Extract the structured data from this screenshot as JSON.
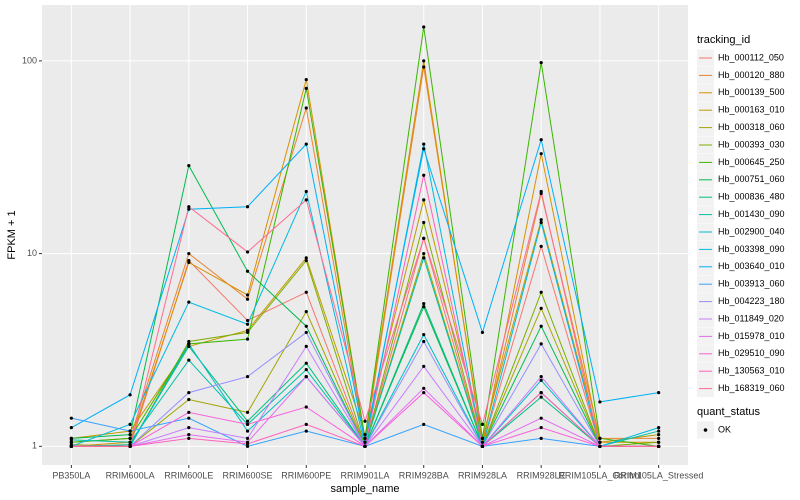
{
  "chart_data": {
    "type": "line",
    "x_label": "sample_name",
    "y_label": "FPKM + 1",
    "categories": [
      "PB350LA",
      "RRIM600LA",
      "RRIM600LE",
      "RRIM600SE",
      "RRIM600PE",
      "RRIM901LA",
      "RRIM928BA",
      "RRIM928LA",
      "RRIM928LE",
      "RRIM105LA_Control",
      "RRIM105LA_Stressed"
    ],
    "log_y": true,
    "ylim": [
      0.8,
      195
    ],
    "yticks": [
      1,
      10,
      100
    ],
    "grid": true,
    "legend_title": "tracking_id",
    "point_legend": {
      "title": "quant_status",
      "label": "OK",
      "color": "#000000"
    },
    "series": [
      {
        "name": "Hb_000112_050",
        "color": "#F8766D",
        "values": [
          1.0,
          1.0,
          9.2,
          4.5,
          6.3,
          1.0,
          12,
          1.0,
          10.9,
          1.0,
          1.0
        ]
      },
      {
        "name": "Hb_000120_880",
        "color": "#EA8331",
        "values": [
          1.05,
          1.1,
          10,
          5.8,
          57,
          1.05,
          93,
          1.05,
          20.5,
          1.1,
          1.1
        ]
      },
      {
        "name": "Hb_000139_500",
        "color": "#D89000",
        "values": [
          1.0,
          1.05,
          9,
          6.1,
          80,
          1.1,
          100,
          1.0,
          33,
          1.05,
          1.05
        ]
      },
      {
        "name": "Hb_000163_010",
        "color": "#C09B00",
        "values": [
          1.1,
          1.2,
          3.3,
          4,
          9.5,
          1.15,
          19,
          1.1,
          15,
          1.05,
          1.15
        ]
      },
      {
        "name": "Hb_000318_060",
        "color": "#A3A500",
        "values": [
          1.02,
          1.0,
          1.75,
          1.5,
          5,
          1.0,
          10,
          1.0,
          5.2,
          1.0,
          1.0
        ]
      },
      {
        "name": "Hb_000393_030",
        "color": "#7CAE00",
        "values": [
          1.0,
          1.0,
          3.5,
          3.9,
          9.2,
          1.0,
          14.5,
          1.0,
          6.3,
          1.0,
          1.05
        ]
      },
      {
        "name": "Hb_000645_250",
        "color": "#39B600",
        "values": [
          1.05,
          1.1,
          3.4,
          3.6,
          72,
          1.1,
          150,
          1.1,
          98,
          1.1,
          1.0
        ]
      },
      {
        "name": "Hb_000751_060",
        "color": "#00BB4E",
        "values": [
          1.1,
          1.15,
          28.6,
          8.1,
          4.2,
          1.0,
          5.3,
          1.0,
          4.2,
          1.0,
          1.0
        ]
      },
      {
        "name": "Hb_000836_480",
        "color": "#00BF7D",
        "values": [
          1.0,
          1.02,
          3.3,
          1.35,
          2.7,
          1.0,
          5.5,
          1.0,
          1.8,
          1.0,
          1.0
        ]
      },
      {
        "name": "Hb_001430_090",
        "color": "#00C1A3",
        "values": [
          1.08,
          1.05,
          2.8,
          1.3,
          2.5,
          1.0,
          9.5,
          1.0,
          1.9,
          1.0,
          1.2
        ]
      },
      {
        "name": "Hb_002900_040",
        "color": "#00BFC4",
        "values": [
          1.0,
          1.0,
          3.4,
          1.2,
          2.3,
          1.0,
          3.8,
          1.0,
          2.2,
          1.0,
          1.0
        ]
      },
      {
        "name": "Hb_003398_090",
        "color": "#00BAE0",
        "values": [
          1.0,
          1.3,
          5.6,
          4.3,
          21,
          1.0,
          37,
          1.0,
          14.5,
          1.0,
          1.25
        ]
      },
      {
        "name": "Hb_003640_010",
        "color": "#00B0F6",
        "values": [
          1.25,
          1.85,
          17,
          17.5,
          37,
          1.05,
          35,
          3.9,
          39,
          1.7,
          1.9
        ]
      },
      {
        "name": "Hb_003913_060",
        "color": "#35A2FF",
        "values": [
          1.4,
          1.2,
          1.4,
          1.0,
          1.2,
          1.0,
          1.3,
          1.0,
          1.1,
          1.0,
          1.0
        ]
      },
      {
        "name": "Hb_004223_180",
        "color": "#9590FF",
        "values": [
          1.0,
          1.0,
          1.9,
          2.3,
          3.9,
          1.0,
          3.5,
          1.0,
          3.4,
          1.0,
          1.0
        ]
      },
      {
        "name": "Hb_011849_020",
        "color": "#C77CFF",
        "values": [
          1.0,
          1.0,
          1.25,
          1.1,
          3.3,
          1.0,
          2.6,
          1.0,
          2.3,
          1.0,
          1.0
        ]
      },
      {
        "name": "Hb_015978_010",
        "color": "#E76BF3",
        "values": [
          1.0,
          1.0,
          1.15,
          1.05,
          2.3,
          1.0,
          2.0,
          1.0,
          1.4,
          1.0,
          1.0
        ]
      },
      {
        "name": "Hb_029510_090",
        "color": "#FA62DB",
        "values": [
          1.0,
          1.0,
          1.5,
          1.3,
          1.6,
          1.0,
          1.9,
          1.0,
          1.25,
          1.0,
          1.0
        ]
      },
      {
        "name": "Hb_130563_010",
        "color": "#FF62BC",
        "values": [
          1.0,
          1.0,
          1.1,
          1.03,
          1.3,
          1.0,
          25.5,
          1.0,
          1.9,
          1.0,
          1.0
        ]
      },
      {
        "name": "Hb_168319_060",
        "color": "#FF6C91",
        "values": [
          1.0,
          1.0,
          17.5,
          10.2,
          19,
          1.35,
          12,
          1.3,
          21,
          1.0,
          1.0
        ]
      }
    ]
  }
}
